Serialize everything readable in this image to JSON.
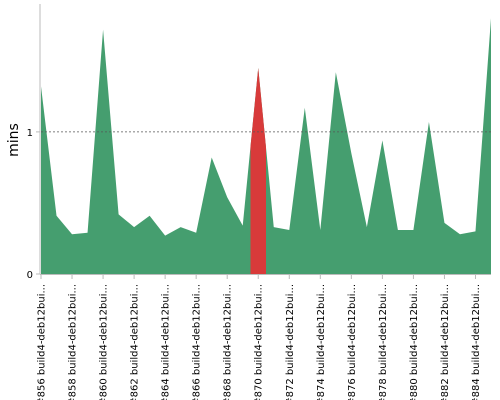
{
  "chart_data": {
    "type": "area",
    "title": "",
    "xlabel": "",
    "ylabel": "mins",
    "ylim": [
      0,
      1.9
    ],
    "yticks": [
      0,
      1
    ],
    "reference_line": 1,
    "colors": {
      "area": "#459e6f",
      "highlight": "#d83a3a",
      "reference": "#555555",
      "axis": "#bbbbbb"
    },
    "highlight_label": "#870 build4-deb12bui...",
    "x_labels": [
      "#856 build4-deb12bui...",
      "#858 build4-deb12bui...",
      "#860 build4-deb12bui...",
      "#862 build4-deb12bui...",
      "#864 build4-deb12bui...",
      "#866 build4-deb12bui...",
      "#868 build4-deb12bui...",
      "#870 build4-deb12bui...",
      "#872 build4-deb12bui...",
      "#874 build4-deb12bui...",
      "#876 build4-deb12bui...",
      "#878 build4-deb12bui...",
      "#880 build4-deb12bui...",
      "#882 build4-deb12bui...",
      "#884 build4-deb12bui..."
    ],
    "values": [
      1.32,
      0.41,
      0.28,
      0.29,
      1.72,
      0.42,
      0.33,
      0.41,
      0.27,
      0.33,
      0.29,
      0.82,
      0.54,
      0.34,
      1.45,
      0.33,
      0.31,
      1.17,
      0.31,
      1.42,
      0.85,
      0.33,
      0.94,
      0.31,
      0.31,
      1.07,
      0.36,
      0.28,
      0.3,
      1.8
    ]
  }
}
